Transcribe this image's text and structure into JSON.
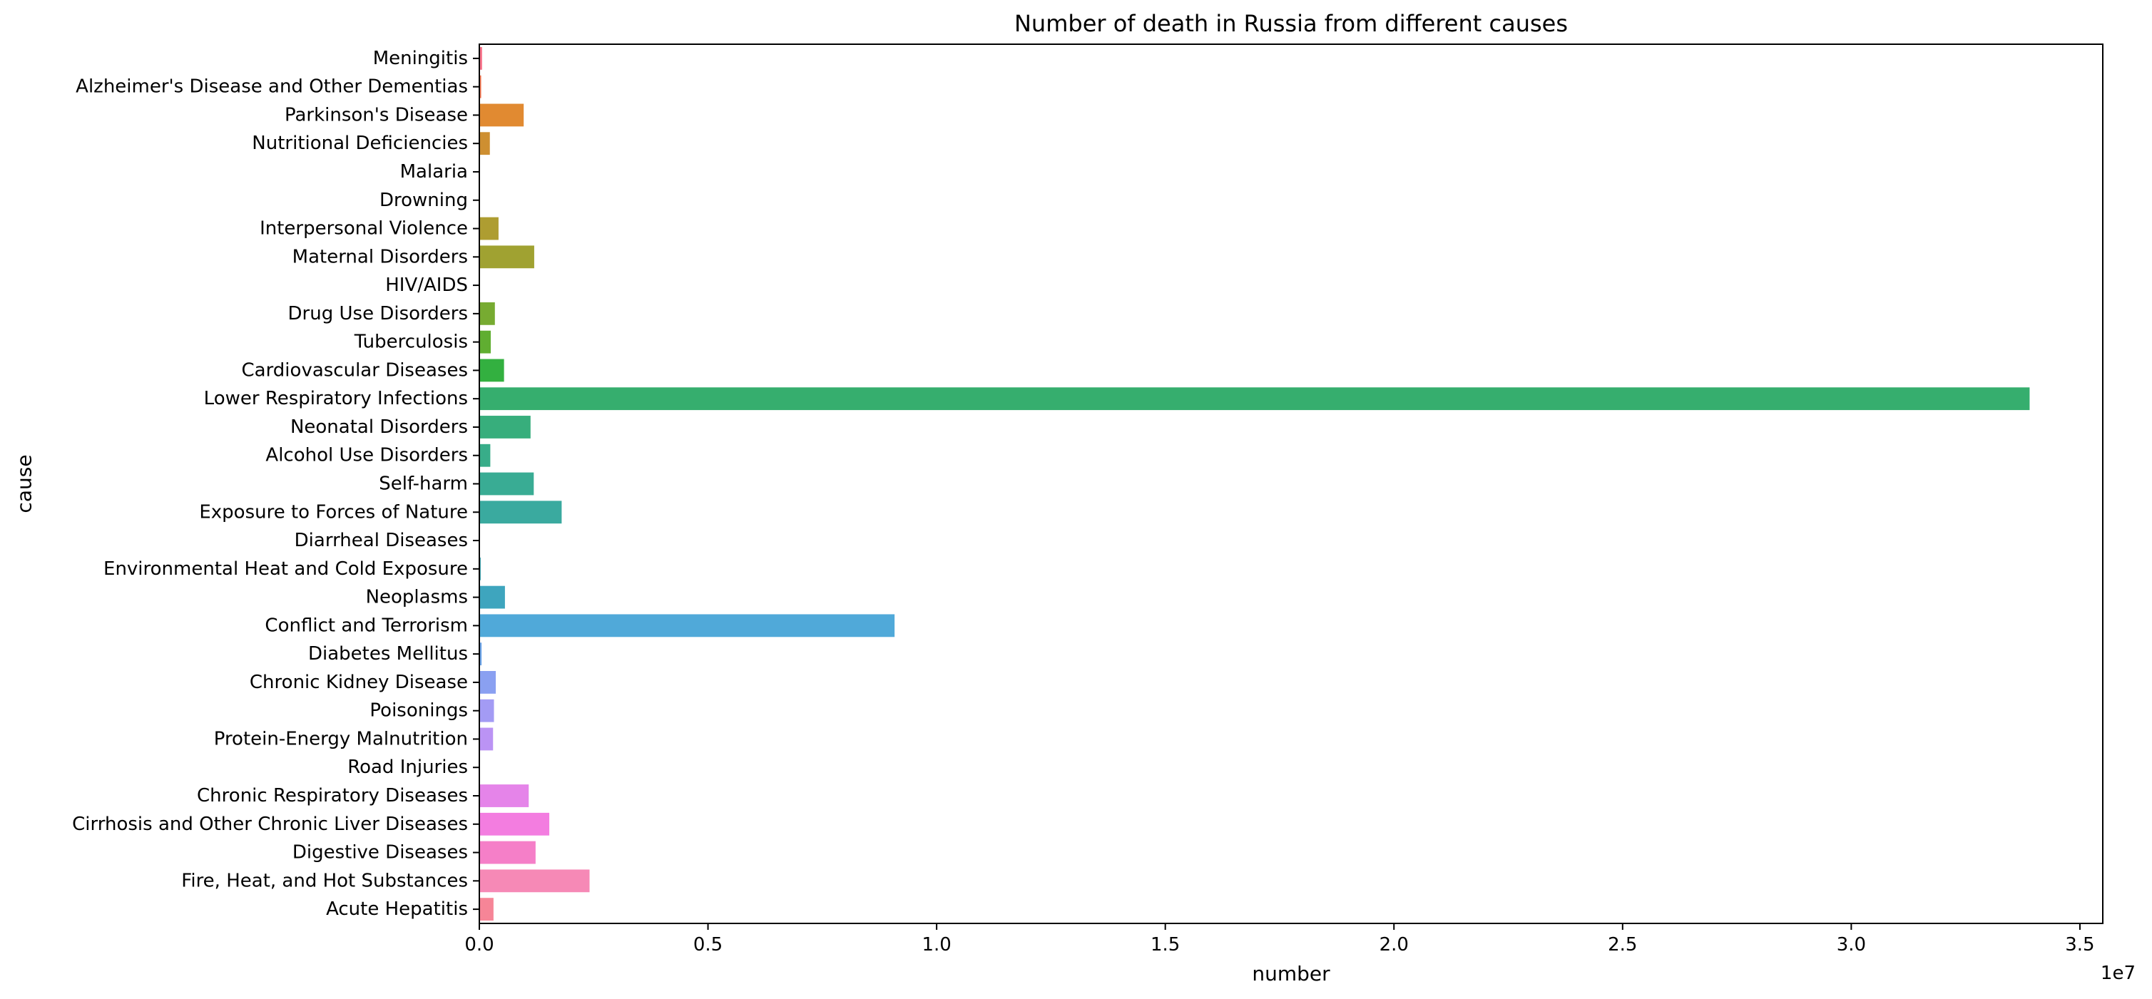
{
  "chart_data": {
    "type": "bar",
    "orientation": "horizontal",
    "title": "Number of death in Russia from different causes",
    "xlabel": "number",
    "ylabel": "cause",
    "x_offset_label": "1e7",
    "xlim": [
      0,
      35500000
    ],
    "xticks": [
      0,
      5000000,
      10000000,
      15000000,
      20000000,
      25000000,
      30000000,
      35000000
    ],
    "xtick_labels": [
      "0.0",
      "0.5",
      "1.0",
      "1.5",
      "2.0",
      "2.5",
      "3.0",
      "3.5"
    ],
    "grid": false,
    "categories": [
      "Meningitis",
      "Alzheimer's Disease and Other Dementias",
      "Parkinson's Disease",
      "Nutritional Deficiencies",
      "Malaria",
      "Drowning",
      "Interpersonal Violence",
      "Maternal Disorders",
      "HIV/AIDS",
      "Drug Use Disorders",
      "Tuberculosis",
      "Cardiovascular Diseases",
      "Lower Respiratory Infections",
      "Neonatal Disorders",
      "Alcohol Use Disorders",
      "Self-harm",
      "Exposure to Forces of Nature",
      "Diarrheal Diseases",
      "Environmental Heat and Cold Exposure",
      "Neoplasms",
      "Conflict and Terrorism",
      "Diabetes Mellitus",
      "Chronic Kidney Disease",
      "Poisonings",
      "Protein-Energy Malnutrition",
      "Road Injuries",
      "Chronic Respiratory Diseases",
      "Cirrhosis and Other Chronic Liver Diseases",
      "Digestive Diseases",
      "Fire, Heat, and Hot Substances",
      "Acute Hepatitis"
    ],
    "values": [
      60000,
      40000,
      970000,
      230000,
      5000,
      3000,
      420000,
      1200000,
      5000,
      340000,
      250000,
      540000,
      33900000,
      1120000,
      240000,
      1190000,
      1800000,
      10000,
      30000,
      560000,
      9080000,
      50000,
      360000,
      320000,
      300000,
      5000,
      1080000,
      1530000,
      1230000,
      2410000,
      310000
    ],
    "colors": [
      "#f77189",
      "#f7754f",
      "#e18a31",
      "#ce8f31",
      "#bb9832",
      "#b59c31",
      "#ae9d31",
      "#a0a231",
      "#8fa531",
      "#77ab31",
      "#60ae31",
      "#33b040",
      "#36ae6e",
      "#37ae7c",
      "#38ad89",
      "#39ac94",
      "#3aaa9f",
      "#3ba9a9",
      "#3ca8b4",
      "#3ea5be",
      "#50a9d9",
      "#6ea6ea",
      "#8aa0f1",
      "#a39bf4",
      "#bb93f4",
      "#cc8ef2",
      "#e584e9",
      "#f37de0",
      "#f57fc8",
      "#f689b6",
      "#f68597"
    ]
  }
}
